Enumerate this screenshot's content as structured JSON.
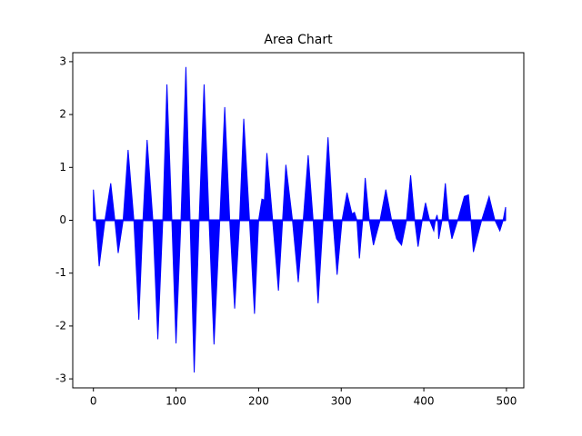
{
  "chart_data": {
    "type": "area",
    "title": "Area Chart",
    "color": "#0000ff",
    "x": [
      0,
      3,
      7,
      14,
      21,
      26,
      30,
      36,
      42,
      49,
      55,
      60,
      65,
      72,
      78,
      84,
      89,
      95,
      100,
      106,
      112,
      117,
      122,
      128,
      134,
      140,
      146,
      153,
      159,
      165,
      171,
      177,
      182,
      189,
      195,
      200,
      204,
      207,
      210,
      217,
      224,
      229,
      233,
      241,
      248,
      254,
      260,
      266,
      272,
      278,
      284,
      290,
      295,
      301,
      307,
      313,
      316,
      319,
      322,
      326,
      329,
      334,
      339,
      347,
      354,
      361,
      367,
      373,
      379,
      384,
      389,
      393,
      398,
      402,
      407,
      412,
      414,
      416,
      417,
      418,
      422,
      426,
      430,
      434,
      441,
      449,
      454,
      457,
      460,
      470,
      479,
      486,
      492,
      496,
      499
    ],
    "values": [
      0.58,
      0,
      -0.87,
      0,
      0.7,
      0,
      -0.62,
      0,
      1.33,
      0,
      -1.88,
      0,
      1.52,
      0,
      -2.25,
      0,
      2.57,
      0,
      -2.33,
      0,
      2.9,
      0,
      -2.88,
      0,
      2.57,
      0,
      -2.35,
      0,
      2.14,
      0,
      -1.67,
      0,
      1.92,
      0,
      -1.77,
      0,
      0.4,
      0.38,
      1.27,
      0,
      -1.33,
      0,
      1.05,
      0,
      -1.17,
      0,
      1.23,
      0,
      -1.57,
      0,
      1.57,
      0,
      -1.03,
      0,
      0.52,
      0.12,
      0.15,
      0,
      -0.72,
      0,
      0.8,
      0,
      -0.47,
      0,
      0.58,
      0,
      -0.35,
      -0.47,
      0,
      0.85,
      0,
      -0.5,
      0,
      0.33,
      0,
      -0.2,
      0,
      0.1,
      0,
      -0.35,
      0,
      0.7,
      0,
      -0.35,
      0,
      0.45,
      0.48,
      0,
      -0.6,
      0,
      0.45,
      0,
      -0.2,
      0,
      0.25
    ],
    "xlim": [
      -25,
      521
    ],
    "ylim": [
      -3.17,
      3.17
    ],
    "xticks": [
      0,
      100,
      200,
      300,
      400,
      500
    ],
    "yticks": [
      -3,
      -2,
      -1,
      0,
      1,
      2,
      3
    ]
  }
}
